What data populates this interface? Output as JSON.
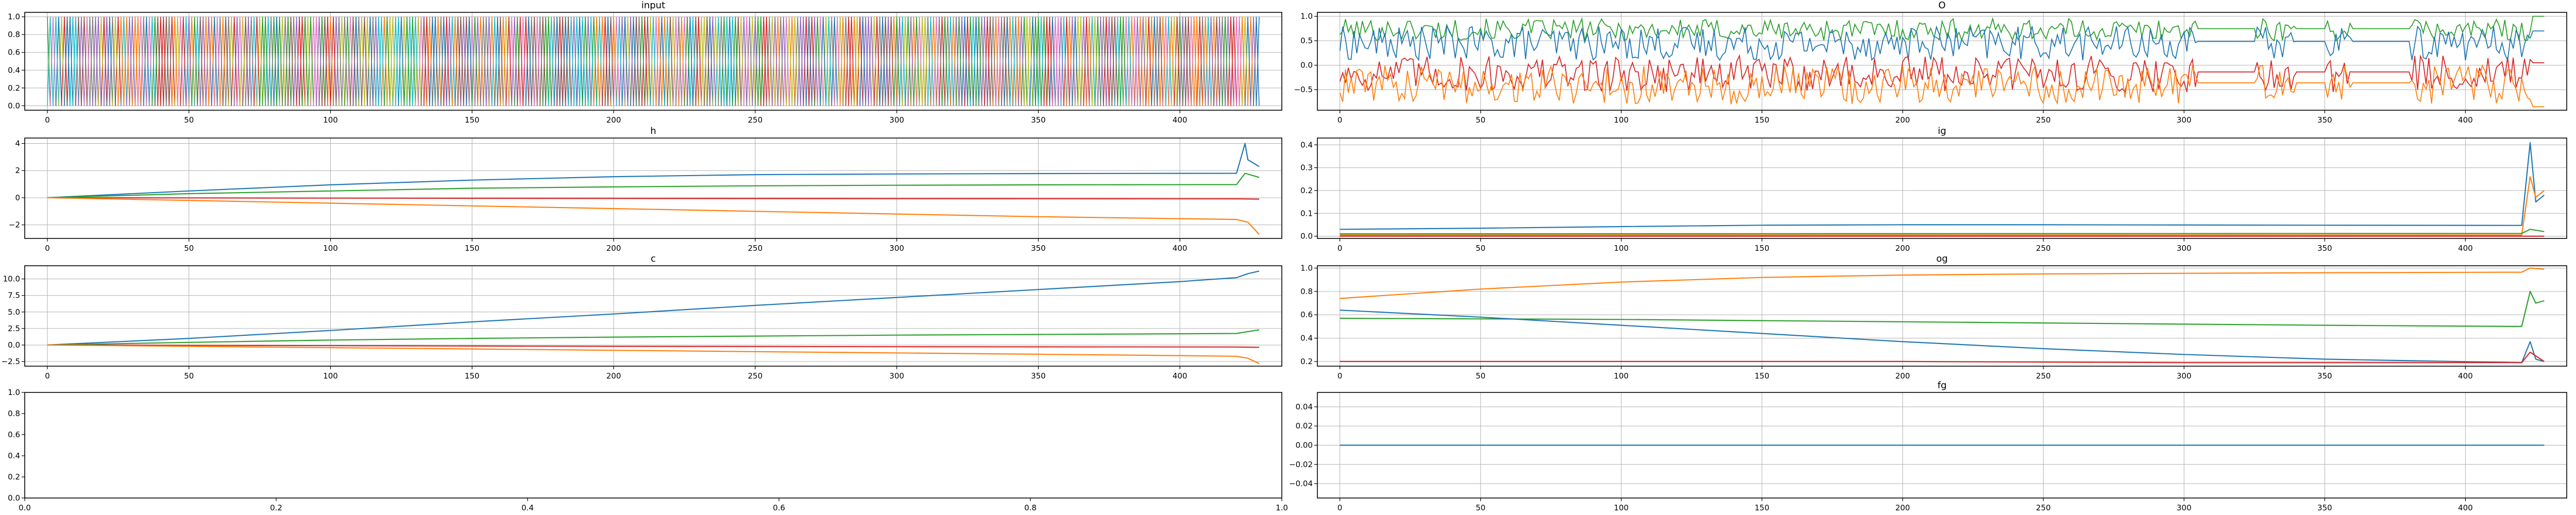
{
  "figure": {
    "panels": [
      {
        "id": "input",
        "title": "input",
        "xlim": [
          -8,
          436
        ],
        "ylim": [
          -0.05,
          1.05
        ],
        "xticks": [
          0,
          50,
          100,
          150,
          200,
          250,
          300,
          350,
          400
        ],
        "yticks": [
          0.0,
          0.2,
          0.4,
          0.6,
          0.8,
          1.0
        ],
        "xtick_labels": [
          "0",
          "50",
          "100",
          "150",
          "200",
          "250",
          "300",
          "350",
          "400"
        ],
        "ytick_labels": [
          "0.0",
          "0.2",
          "0.4",
          "0.6",
          "0.8",
          "1.0"
        ],
        "grid": true
      },
      {
        "id": "o",
        "title": "O",
        "xlim": [
          -8,
          436
        ],
        "ylim": [
          -0.92,
          1.08
        ],
        "xticks": [
          0,
          50,
          100,
          150,
          200,
          250,
          300,
          350,
          400
        ],
        "yticks": [
          -0.5,
          0.0,
          0.5,
          1.0
        ],
        "xtick_labels": [
          "0",
          "50",
          "100",
          "150",
          "200",
          "250",
          "300",
          "350",
          "400"
        ],
        "ytick_labels": [
          "−0.5",
          "0.0",
          "0.5",
          "1.0"
        ],
        "grid": true
      },
      {
        "id": "h",
        "title": "h",
        "xlim": [
          -8,
          436
        ],
        "ylim": [
          -3.0,
          4.4
        ],
        "xticks": [
          0,
          50,
          100,
          150,
          200,
          250,
          300,
          350,
          400
        ],
        "yticks": [
          -2,
          0,
          2,
          4
        ],
        "xtick_labels": [
          "0",
          "50",
          "100",
          "150",
          "200",
          "250",
          "300",
          "350",
          "400"
        ],
        "ytick_labels": [
          "−2",
          "0",
          "2",
          "4"
        ],
        "grid": true
      },
      {
        "id": "ig",
        "title": "ig",
        "xlim": [
          -8,
          436
        ],
        "ylim": [
          -0.01,
          0.43
        ],
        "xticks": [
          0,
          50,
          100,
          150,
          200,
          250,
          300,
          350,
          400
        ],
        "yticks": [
          0.0,
          0.1,
          0.2,
          0.3,
          0.4
        ],
        "xtick_labels": [
          "0",
          "50",
          "100",
          "150",
          "200",
          "250",
          "300",
          "350",
          "400"
        ],
        "ytick_labels": [
          "0.0",
          "0.1",
          "0.2",
          "0.3",
          "0.4"
        ],
        "grid": true
      },
      {
        "id": "c",
        "title": "c",
        "xlim": [
          -8,
          436
        ],
        "ylim": [
          -3.2,
          12.0
        ],
        "xticks": [
          0,
          50,
          100,
          150,
          200,
          250,
          300,
          350,
          400
        ],
        "yticks": [
          -2.5,
          0.0,
          2.5,
          5.0,
          7.5,
          10.0
        ],
        "xtick_labels": [
          "0",
          "50",
          "100",
          "150",
          "200",
          "250",
          "300",
          "350",
          "400"
        ],
        "ytick_labels": [
          "−2.5",
          "0.0",
          "2.5",
          "5.0",
          "7.5",
          "10.0"
        ],
        "grid": true
      },
      {
        "id": "og",
        "title": "og",
        "xlim": [
          -8,
          436
        ],
        "ylim": [
          0.16,
          1.02
        ],
        "xticks": [
          0,
          50,
          100,
          150,
          200,
          250,
          300,
          350,
          400
        ],
        "yticks": [
          0.2,
          0.4,
          0.6,
          0.8,
          1.0
        ],
        "xtick_labels": [
          "0",
          "50",
          "100",
          "150",
          "200",
          "250",
          "300",
          "350",
          "400"
        ],
        "ytick_labels": [
          "0.2",
          "0.4",
          "0.6",
          "0.8",
          "1.0"
        ],
        "grid": true
      },
      {
        "id": "empty",
        "title": "",
        "xlim": [
          0,
          1
        ],
        "ylim": [
          0,
          1
        ],
        "xticks": [
          0.0,
          0.2,
          0.4,
          0.6,
          0.8,
          1.0
        ],
        "yticks": [
          0.0,
          0.2,
          0.4,
          0.6,
          0.8,
          1.0
        ],
        "xtick_labels": [
          "0.0",
          "0.2",
          "0.4",
          "0.6",
          "0.8",
          "1.0"
        ],
        "ytick_labels": [
          "0.0",
          "0.2",
          "0.4",
          "0.6",
          "0.8",
          "1.0"
        ],
        "grid": false
      },
      {
        "id": "fg",
        "title": "fg",
        "xlim": [
          -8,
          436
        ],
        "ylim": [
          -0.055,
          0.055
        ],
        "xticks": [
          0,
          50,
          100,
          150,
          200,
          250,
          300,
          350,
          400
        ],
        "yticks": [
          -0.04,
          -0.02,
          0.0,
          0.02,
          0.04
        ],
        "xtick_labels": [
          "0",
          "50",
          "100",
          "150",
          "200",
          "250",
          "300",
          "350",
          "400"
        ],
        "ytick_labels": [
          "−0.04",
          "−0.02",
          "0.00",
          "0.02",
          "0.04"
        ],
        "grid": true
      }
    ]
  },
  "chart_data": [
    {
      "type": "line",
      "panel": "input",
      "title": "input",
      "n_steps": 428,
      "note_values": "binary one-hot style signals switching between 0 and 1 at every step; many overlapping series",
      "series": [
        {
          "color": "#1f77b4"
        },
        {
          "color": "#ff7f0e"
        },
        {
          "color": "#2ca02c"
        },
        {
          "color": "#d62728"
        },
        {
          "color": "#9467bd"
        },
        {
          "color": "#8c564b"
        },
        {
          "color": "#e377c2"
        },
        {
          "color": "#7f7f7f"
        },
        {
          "color": "#bcbd22"
        },
        {
          "color": "#17becf"
        }
      ],
      "ylim": [
        -0.05,
        1.05
      ]
    },
    {
      "type": "line",
      "panel": "o",
      "title": "O",
      "series": [
        {
          "color": "#2ca02c",
          "range": [
            0.5,
            0.95
          ],
          "end": 1.0
        },
        {
          "color": "#1f77b4",
          "range": [
            0.1,
            0.8
          ],
          "end": 0.7
        },
        {
          "color": "#d62728",
          "range": [
            -0.55,
            0.2
          ],
          "end": 0.05
        },
        {
          "color": "#ff7f0e",
          "range": [
            -0.8,
            0.0
          ],
          "end": -0.85
        }
      ],
      "ylim": [
        -0.92,
        1.08
      ]
    },
    {
      "type": "line",
      "panel": "h",
      "title": "h",
      "series": [
        {
          "color": "#1f77b4",
          "x": [
            0,
            50,
            100,
            150,
            200,
            250,
            300,
            350,
            420,
            423,
            424,
            428
          ],
          "y": [
            0,
            0.5,
            0.95,
            1.3,
            1.55,
            1.7,
            1.75,
            1.78,
            1.8,
            4.0,
            2.8,
            2.3
          ]
        },
        {
          "color": "#2ca02c",
          "x": [
            0,
            50,
            100,
            150,
            200,
            250,
            300,
            350,
            420,
            423,
            428
          ],
          "y": [
            0,
            0.3,
            0.5,
            0.7,
            0.8,
            0.88,
            0.92,
            0.95,
            0.97,
            1.8,
            1.5
          ]
        },
        {
          "color": "#d62728",
          "x": [
            0,
            100,
            200,
            300,
            420,
            428
          ],
          "y": [
            0,
            -0.03,
            -0.05,
            -0.07,
            -0.08,
            -0.1
          ]
        },
        {
          "color": "#ff7f0e",
          "x": [
            0,
            50,
            100,
            150,
            200,
            250,
            300,
            350,
            420,
            424,
            428
          ],
          "y": [
            0,
            -0.2,
            -0.4,
            -0.6,
            -0.8,
            -1.0,
            -1.2,
            -1.4,
            -1.6,
            -1.8,
            -2.7
          ]
        }
      ],
      "ylim": [
        -3.0,
        4.4
      ]
    },
    {
      "type": "line",
      "panel": "ig",
      "title": "ig",
      "series": [
        {
          "color": "#1f77b4",
          "x": [
            0,
            50,
            100,
            150,
            200,
            250,
            300,
            350,
            420,
            423,
            425,
            428
          ],
          "y": [
            0.03,
            0.035,
            0.042,
            0.048,
            0.05,
            0.05,
            0.049,
            0.048,
            0.047,
            0.41,
            0.15,
            0.18
          ]
        },
        {
          "color": "#ff7f0e",
          "x": [
            0,
            420,
            423,
            425,
            428
          ],
          "y": [
            0.005,
            0.005,
            0.26,
            0.17,
            0.2
          ]
        },
        {
          "color": "#2ca02c",
          "x": [
            0,
            420,
            423,
            428
          ],
          "y": [
            0.01,
            0.012,
            0.03,
            0.02
          ]
        },
        {
          "color": "#d62728",
          "x": [
            0,
            420,
            428
          ],
          "y": [
            0.0,
            0.0,
            0.0
          ]
        }
      ],
      "ylim": [
        -0.01,
        0.43
      ]
    },
    {
      "type": "line",
      "panel": "c",
      "title": "c",
      "series": [
        {
          "color": "#1f77b4",
          "x": [
            0,
            50,
            100,
            150,
            200,
            250,
            300,
            350,
            400,
            420,
            424,
            428
          ],
          "y": [
            0,
            1.0,
            2.2,
            3.5,
            4.7,
            6.0,
            7.2,
            8.4,
            9.6,
            10.2,
            10.8,
            11.2
          ]
        },
        {
          "color": "#2ca02c",
          "x": [
            0,
            50,
            100,
            150,
            200,
            250,
            300,
            350,
            400,
            420,
            428
          ],
          "y": [
            0,
            0.4,
            0.75,
            1.0,
            1.2,
            1.35,
            1.5,
            1.6,
            1.7,
            1.75,
            2.3
          ]
        },
        {
          "color": "#d62728",
          "x": [
            0,
            100,
            200,
            300,
            420,
            428
          ],
          "y": [
            0,
            -0.1,
            -0.2,
            -0.25,
            -0.3,
            -0.35
          ]
        },
        {
          "color": "#ff7f0e",
          "x": [
            0,
            50,
            100,
            150,
            200,
            250,
            300,
            350,
            400,
            420,
            424,
            428
          ],
          "y": [
            0,
            -0.2,
            -0.4,
            -0.6,
            -0.8,
            -1.0,
            -1.2,
            -1.4,
            -1.6,
            -1.7,
            -2.0,
            -2.8
          ]
        }
      ],
      "ylim": [
        -3.2,
        12.0
      ]
    },
    {
      "type": "line",
      "panel": "og",
      "title": "og",
      "series": [
        {
          "color": "#ff7f0e",
          "x": [
            0,
            50,
            100,
            150,
            200,
            250,
            300,
            350,
            420,
            423,
            428
          ],
          "y": [
            0.74,
            0.82,
            0.88,
            0.92,
            0.94,
            0.95,
            0.955,
            0.96,
            0.965,
            1.0,
            0.99
          ]
        },
        {
          "color": "#2ca02c",
          "x": [
            0,
            50,
            100,
            150,
            200,
            250,
            300,
            350,
            420,
            423,
            425,
            428
          ],
          "y": [
            0.57,
            0.565,
            0.56,
            0.55,
            0.54,
            0.53,
            0.52,
            0.51,
            0.5,
            0.8,
            0.7,
            0.72
          ]
        },
        {
          "color": "#1f77b4",
          "x": [
            0,
            50,
            100,
            150,
            200,
            250,
            300,
            350,
            420,
            423,
            425,
            428
          ],
          "y": [
            0.64,
            0.58,
            0.51,
            0.44,
            0.37,
            0.31,
            0.26,
            0.22,
            0.19,
            0.37,
            0.22,
            0.2
          ]
        },
        {
          "color": "#d62728",
          "x": [
            0,
            100,
            200,
            300,
            420,
            423,
            428
          ],
          "y": [
            0.2,
            0.2,
            0.2,
            0.19,
            0.19,
            0.28,
            0.2
          ]
        }
      ],
      "ylim": [
        0.16,
        1.02
      ]
    },
    {
      "type": "line",
      "panel": "fg",
      "title": "fg",
      "series": [
        {
          "color": "#1f77b4",
          "x": [
            0,
            428
          ],
          "y": [
            0.0,
            0.0
          ]
        }
      ],
      "ylim": [
        -0.055,
        0.055
      ]
    }
  ]
}
